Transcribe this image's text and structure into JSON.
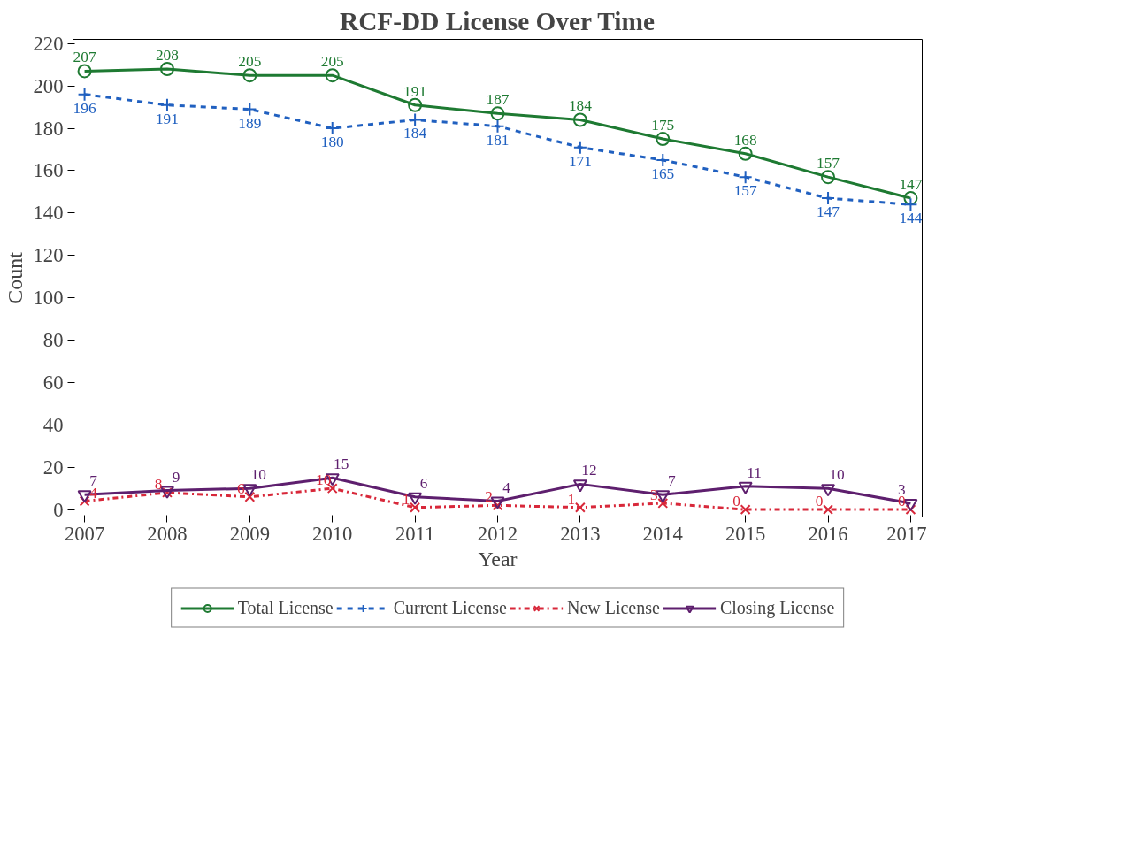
{
  "chart_data": {
    "type": "line",
    "title": "RCF-DD License Over Time",
    "xlabel": "Year",
    "ylabel": "Count",
    "x": [
      2007,
      2008,
      2009,
      2010,
      2011,
      2012,
      2013,
      2014,
      2015,
      2016,
      2017
    ],
    "series": [
      {
        "name": "Total License",
        "color": "#1e7a32",
        "marker": "circle",
        "line_style": "solid",
        "values": [
          207,
          208,
          205,
          205,
          191,
          187,
          184,
          175,
          168,
          157,
          147
        ]
      },
      {
        "name": "Current License",
        "color": "#2060c0",
        "marker": "cross",
        "line_style": "dashed",
        "values": [
          196,
          191,
          189,
          180,
          184,
          181,
          171,
          165,
          157,
          147,
          144
        ]
      },
      {
        "name": "New License",
        "color": "#d8283a",
        "marker": "x",
        "line_style": "dashdot",
        "values": [
          4,
          8,
          6,
          10,
          1,
          2,
          1,
          3,
          0,
          0,
          0
        ]
      },
      {
        "name": "Closing License",
        "color": "#5e1f6e",
        "marker": "triangle",
        "line_style": "solid",
        "values": [
          7,
          9,
          10,
          15,
          6,
          4,
          12,
          7,
          11,
          10,
          3
        ]
      }
    ],
    "xlim": [
      2006.86,
      2017.14
    ],
    "ylim": [
      -3.5,
      222
    ],
    "xticks": [
      2007,
      2008,
      2009,
      2010,
      2011,
      2012,
      2013,
      2014,
      2015,
      2016,
      2017
    ],
    "yticks": [
      0,
      20,
      40,
      60,
      80,
      100,
      120,
      140,
      160,
      180,
      200,
      220
    ],
    "grid": false,
    "legend": "bottom",
    "data_labels": true
  }
}
